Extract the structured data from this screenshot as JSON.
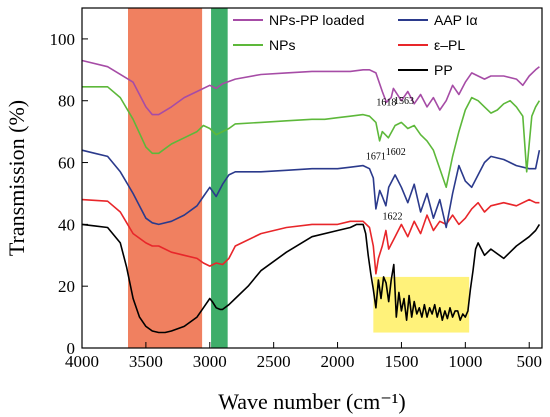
{
  "chart_data": {
    "type": "line",
    "title": "",
    "xlabel": "Wave number (cm⁻¹)",
    "ylabel": "Transmission (%)",
    "xlim": [
      4000,
      400
    ],
    "ylim": [
      0,
      110
    ],
    "x_reversed": true,
    "xticks": [
      4000,
      3500,
      3000,
      2500,
      2000,
      1500,
      1000,
      500
    ],
    "yticks": [
      0,
      20,
      40,
      60,
      80,
      100
    ],
    "grid": false,
    "legend_placement": "top-right",
    "highlights": [
      {
        "x0": 3640,
        "x1": 3060,
        "y0": 0,
        "y1": 110,
        "color": "#f08060"
      },
      {
        "x0": 2990,
        "x1": 2860,
        "y0": 0,
        "y1": 110,
        "color": "#3fae6a"
      },
      {
        "x0": 1720,
        "x1": 970,
        "y0": 5,
        "y1": 23,
        "color": "#fff27a"
      }
    ],
    "annotations": [
      {
        "text": "1618",
        "x": 1618,
        "y": 78.5
      },
      {
        "text": "1563",
        "x": 1480,
        "y": 79
      },
      {
        "text": "1671",
        "x": 1700,
        "y": 61
      },
      {
        "text": "1602",
        "x": 1545,
        "y": 62.5
      },
      {
        "text": "1622",
        "x": 1570,
        "y": 41.5
      }
    ],
    "series": [
      {
        "name": "NPs-PP loaded",
        "color": "#a64ca6",
        "x": [
          4000,
          3800,
          3600,
          3500,
          3450,
          3400,
          3300,
          3200,
          3100,
          3000,
          2950,
          2900,
          2800,
          2600,
          2400,
          2200,
          2000,
          1900,
          1800,
          1750,
          1700,
          1650,
          1618,
          1580,
          1563,
          1500,
          1450,
          1400,
          1350,
          1300,
          1250,
          1200,
          1150,
          1100,
          1050,
          1000,
          950,
          900,
          850,
          800,
          700,
          600,
          550,
          500,
          450,
          420
        ],
        "y": [
          93,
          91,
          86,
          78,
          75.5,
          75.5,
          78,
          81,
          83,
          85,
          84,
          85.5,
          87,
          88.5,
          89,
          89.5,
          89.5,
          89.5,
          90,
          90,
          89,
          83,
          79.5,
          81,
          84,
          80,
          83,
          79,
          82,
          78,
          81,
          77,
          80,
          85,
          82,
          86,
          89,
          88,
          87,
          88,
          88,
          87,
          85,
          88,
          90,
          91
        ]
      },
      {
        "name": "NPs",
        "color": "#5db83a",
        "x": [
          4000,
          3800,
          3700,
          3600,
          3500,
          3450,
          3400,
          3300,
          3200,
          3100,
          3050,
          3000,
          2950,
          2900,
          2850,
          2800,
          2600,
          2400,
          2200,
          2100,
          2000,
          1900,
          1800,
          1750,
          1700,
          1671,
          1650,
          1602,
          1550,
          1500,
          1450,
          1400,
          1350,
          1300,
          1250,
          1200,
          1150,
          1100,
          1050,
          1000,
          950,
          900,
          850,
          800,
          750,
          700,
          650,
          600,
          550,
          520,
          500,
          480,
          450,
          420
        ],
        "y": [
          84.5,
          84.5,
          81,
          74,
          65,
          63,
          63,
          66,
          68,
          70,
          72,
          71,
          69,
          70,
          71,
          72.5,
          73,
          73.5,
          74,
          74,
          74.5,
          75,
          75.5,
          75,
          73,
          67,
          70,
          68,
          72,
          73,
          71,
          72,
          69,
          67,
          64,
          58,
          52,
          62,
          70,
          77,
          81,
          80,
          78,
          76,
          77,
          79,
          80,
          78,
          75,
          57,
          66,
          75,
          78,
          80
        ]
      },
      {
        "name": "AAP Iα",
        "color": "#2b3a8c",
        "x": [
          4000,
          3900,
          3800,
          3700,
          3600,
          3500,
          3450,
          3400,
          3300,
          3200,
          3100,
          3050,
          3000,
          2950,
          2900,
          2850,
          2800,
          2600,
          2400,
          2200,
          2000,
          1900,
          1800,
          1750,
          1720,
          1700,
          1670,
          1650,
          1622,
          1600,
          1550,
          1500,
          1450,
          1400,
          1350,
          1300,
          1250,
          1200,
          1150,
          1100,
          1050,
          1000,
          950,
          900,
          850,
          800,
          700,
          600,
          500,
          450,
          420
        ],
        "y": [
          64,
          63,
          62,
          57,
          50,
          42,
          40.5,
          40,
          41,
          43,
          46,
          49,
          52,
          49,
          53,
          56,
          57,
          57,
          57.5,
          58,
          58,
          58.5,
          59,
          58,
          55,
          45,
          51,
          49,
          46,
          52,
          56,
          52,
          47,
          53,
          44,
          50,
          42,
          48,
          39,
          50,
          59,
          54,
          52,
          56,
          60,
          62,
          61,
          59,
          58,
          58,
          64
        ]
      },
      {
        "name": "ε–PL",
        "color": "#e8262a",
        "x": [
          4000,
          3800,
          3700,
          3600,
          3500,
          3450,
          3400,
          3300,
          3200,
          3100,
          3050,
          3000,
          2950,
          2900,
          2850,
          2800,
          2600,
          2400,
          2200,
          2000,
          1900,
          1800,
          1750,
          1720,
          1700,
          1680,
          1650,
          1622,
          1600,
          1550,
          1500,
          1450,
          1400,
          1350,
          1300,
          1250,
          1200,
          1150,
          1100,
          1050,
          1000,
          950,
          900,
          850,
          800,
          700,
          600,
          500,
          450,
          420
        ],
        "y": [
          48,
          47.5,
          44,
          37,
          34,
          33,
          33,
          31,
          30,
          29,
          27.5,
          26.5,
          27.5,
          27,
          29,
          33,
          37,
          39,
          40,
          40,
          41,
          41,
          39,
          33,
          24,
          29,
          33,
          38,
          32,
          36,
          40,
          36,
          41,
          37,
          43,
          38,
          41,
          40,
          43,
          40,
          42,
          45,
          47,
          44,
          46,
          47,
          46,
          48,
          47,
          47
        ]
      },
      {
        "name": "PP",
        "color": "#000000",
        "x": [
          4000,
          3900,
          3800,
          3700,
          3650,
          3600,
          3550,
          3500,
          3450,
          3400,
          3350,
          3300,
          3200,
          3100,
          3050,
          3000,
          2980,
          2950,
          2920,
          2900,
          2850,
          2800,
          2700,
          2600,
          2400,
          2200,
          2000,
          1900,
          1850,
          1800,
          1780,
          1760,
          1740,
          1720,
          1700,
          1680,
          1660,
          1640,
          1620,
          1600,
          1580,
          1560,
          1540,
          1520,
          1500,
          1480,
          1460,
          1440,
          1420,
          1400,
          1380,
          1360,
          1340,
          1320,
          1300,
          1280,
          1260,
          1240,
          1220,
          1200,
          1180,
          1160,
          1140,
          1120,
          1100,
          1080,
          1060,
          1040,
          1020,
          1000,
          980,
          960,
          940,
          920,
          900,
          850,
          800,
          700,
          600,
          500,
          450,
          420
        ],
        "y": [
          40,
          39.5,
          39,
          34,
          26,
          16,
          10,
          7,
          5.5,
          5,
          5,
          5.5,
          7,
          10,
          13,
          16,
          15,
          13,
          12.5,
          12.5,
          14,
          16,
          20,
          25,
          31,
          36,
          38,
          39,
          40,
          40,
          37,
          30,
          24,
          19,
          13,
          22,
          16,
          23,
          21,
          15,
          22,
          27,
          10,
          18,
          12,
          16,
          9,
          17,
          10,
          15,
          11,
          13,
          10,
          14,
          10,
          13,
          11,
          14,
          10,
          13,
          9,
          12,
          9.5,
          13,
          10,
          12,
          12,
          9,
          11,
          10,
          12,
          19,
          25,
          32,
          34,
          30,
          32,
          29,
          33,
          36,
          38,
          40
        ]
      }
    ]
  }
}
